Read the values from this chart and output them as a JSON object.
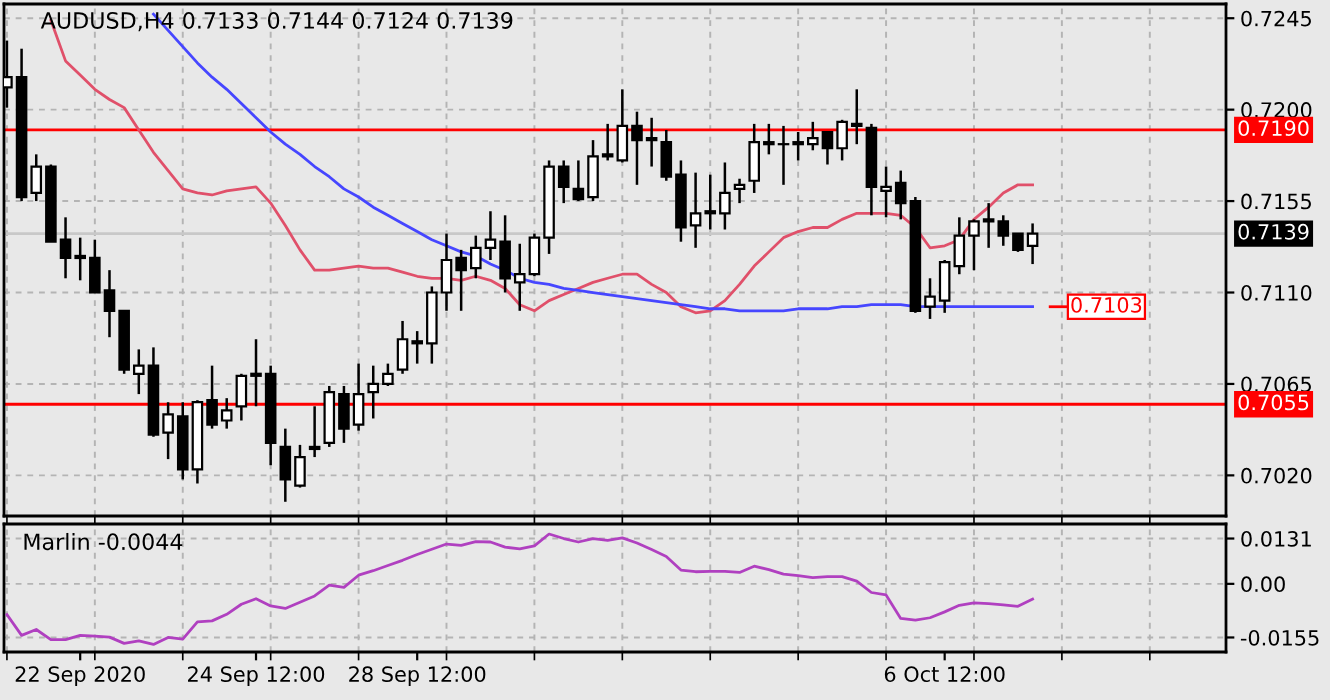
{
  "chart_data": [
    {
      "type": "candlestick",
      "title": "AUDUSD,H4 0.7133 0.7144 0.7124 0.7139",
      "color": "#000000",
      "categories": [
        null,
        null,
        null,
        null,
        null,
        null,
        null,
        null,
        null,
        null,
        null,
        null,
        null,
        null,
        null,
        null,
        null,
        null,
        null,
        null,
        null,
        null,
        null,
        null,
        null,
        null,
        null,
        null,
        null,
        null,
        null,
        null,
        null,
        null,
        null,
        null,
        null,
        null,
        null,
        null,
        null,
        null,
        null,
        null,
        null,
        null,
        null,
        null,
        null,
        null,
        null,
        null,
        null,
        null,
        null,
        null,
        null,
        null,
        null,
        null,
        null,
        null,
        null,
        null,
        null,
        null,
        null,
        null,
        null,
        null,
        null
      ],
      "ohlc": [
        [
          0.7211,
          0.7234,
          0.7201,
          0.7216
        ],
        [
          0.7216,
          0.723,
          0.7155,
          0.7157
        ],
        [
          0.7159,
          0.7178,
          0.7155,
          0.7172
        ],
        [
          0.7172,
          0.7173,
          0.7135,
          0.7135
        ],
        [
          0.7136,
          0.7147,
          0.7117,
          0.7127
        ],
        [
          0.7128,
          0.7137,
          0.7116,
          0.7127
        ],
        [
          0.7127,
          0.7136,
          0.711,
          0.711
        ],
        [
          0.7111,
          0.7121,
          0.7088,
          0.7101
        ],
        [
          0.7101,
          0.7101,
          0.707,
          0.7072
        ],
        [
          0.707,
          0.7082,
          0.706,
          0.7074
        ],
        [
          0.7074,
          0.7083,
          0.7039,
          0.704
        ],
        [
          0.7041,
          0.7056,
          0.7028,
          0.705
        ],
        [
          0.7049,
          0.7056,
          0.7018,
          0.7023
        ],
        [
          0.7023,
          0.7057,
          0.7016,
          0.7056
        ],
        [
          0.7057,
          0.7074,
          0.7043,
          0.7045
        ],
        [
          0.7047,
          0.7058,
          0.7043,
          0.7052
        ],
        [
          0.7054,
          0.707,
          0.7047,
          0.7069
        ],
        [
          0.707,
          0.7087,
          0.7054,
          0.7069
        ],
        [
          0.707,
          0.7074,
          0.7025,
          0.7036
        ],
        [
          0.7034,
          0.7043,
          0.7007,
          0.7018
        ],
        [
          0.7015,
          0.7035,
          0.7014,
          0.7029
        ],
        [
          0.7034,
          0.7054,
          0.7029,
          0.7033
        ],
        [
          0.7036,
          0.7064,
          0.7034,
          0.7061
        ],
        [
          0.706,
          0.7064,
          0.7036,
          0.7043
        ],
        [
          0.7045,
          0.7075,
          0.7042,
          0.706
        ],
        [
          0.7061,
          0.7074,
          0.7048,
          0.7065
        ],
        [
          0.7065,
          0.7075,
          0.7064,
          0.707
        ],
        [
          0.7072,
          0.7096,
          0.707,
          0.7087
        ],
        [
          0.7086,
          0.7091,
          0.7075,
          0.7085
        ],
        [
          0.7085,
          0.7113,
          0.7075,
          0.711
        ],
        [
          0.711,
          0.7139,
          0.7101,
          0.7126
        ],
        [
          0.7127,
          0.7131,
          0.7101,
          0.7121
        ],
        [
          0.7122,
          0.7138,
          0.7117,
          0.7132
        ],
        [
          0.7132,
          0.715,
          0.7126,
          0.7136
        ],
        [
          0.7135,
          0.7148,
          0.711,
          0.7117
        ],
        [
          0.7115,
          0.7134,
          0.7101,
          0.7119
        ],
        [
          0.7119,
          0.7139,
          0.7118,
          0.7137
        ],
        [
          0.7137,
          0.7175,
          0.7129,
          0.7172
        ],
        [
          0.7172,
          0.7175,
          0.7154,
          0.7162
        ],
        [
          0.7161,
          0.7175,
          0.7155,
          0.7156
        ],
        [
          0.7157,
          0.7185,
          0.7155,
          0.7177
        ],
        [
          0.7177,
          0.7193,
          0.7175,
          0.7178
        ],
        [
          0.7175,
          0.721,
          0.7174,
          0.7192
        ],
        [
          0.7192,
          0.7199,
          0.7163,
          0.7185
        ],
        [
          0.7186,
          0.7196,
          0.7172,
          0.7185
        ],
        [
          0.7184,
          0.719,
          0.7165,
          0.7167
        ],
        [
          0.7168,
          0.7175,
          0.7135,
          0.7142
        ],
        [
          0.7143,
          0.7169,
          0.7132,
          0.7149
        ],
        [
          0.7149,
          0.7168,
          0.7141,
          0.715
        ],
        [
          0.7149,
          0.7174,
          0.7141,
          0.7159
        ],
        [
          0.7161,
          0.7166,
          0.7154,
          0.7163
        ],
        [
          0.7165,
          0.7193,
          0.7159,
          0.7184
        ],
        [
          0.7184,
          0.7193,
          0.7178,
          0.7183
        ],
        [
          0.7183,
          0.7192,
          0.7163,
          0.7183
        ],
        [
          0.7183,
          0.7189,
          0.7175,
          0.7184
        ],
        [
          0.7183,
          0.7194,
          0.718,
          0.7186
        ],
        [
          0.7189,
          0.7189,
          0.7173,
          0.7181
        ],
        [
          0.7181,
          0.7195,
          0.7175,
          0.7194
        ],
        [
          0.7193,
          0.721,
          0.7183,
          0.7192
        ],
        [
          0.7191,
          0.7193,
          0.7148,
          0.7162
        ],
        [
          0.716,
          0.7172,
          0.7147,
          0.7162
        ],
        [
          0.7164,
          0.717,
          0.7146,
          0.7154
        ],
        [
          0.7155,
          0.7157,
          0.71,
          0.7101
        ],
        [
          0.7103,
          0.7117,
          0.7097,
          0.7108
        ],
        [
          0.7106,
          0.7126,
          0.71,
          0.7125
        ],
        [
          0.7123,
          0.7147,
          0.7119,
          0.7138
        ],
        [
          0.7138,
          0.7146,
          0.7121,
          0.7145
        ],
        [
          0.7146,
          0.7154,
          0.7132,
          0.7145
        ],
        [
          0.7145,
          0.7148,
          0.7133,
          0.7138
        ],
        [
          0.7139,
          0.7139,
          0.713,
          0.7131
        ],
        [
          0.7133,
          0.7144,
          0.7124,
          0.7139
        ]
      ],
      "series": [
        {
          "type": "line",
          "color": "#e0506a",
          "values": [
            null,
            null,
            null,
            0.7244,
            0.7224,
            0.7217,
            0.721,
            0.7205,
            0.7201,
            0.719,
            0.7179,
            0.717,
            0.7161,
            0.7159,
            0.7158,
            0.716,
            0.7161,
            0.7162,
            0.7154,
            0.7143,
            0.7131,
            0.7121,
            0.7121,
            0.7122,
            0.7123,
            0.7122,
            0.7122,
            0.712,
            0.7118,
            0.7117,
            0.7117,
            0.7116,
            0.7118,
            0.7116,
            0.7112,
            0.7104,
            0.7101,
            0.7106,
            0.7109,
            0.7112,
            0.7115,
            0.7117,
            0.7119,
            0.7119,
            0.7114,
            0.711,
            0.7103,
            0.71,
            0.7101,
            0.7106,
            0.7114,
            0.7123,
            0.713,
            0.7137,
            0.714,
            0.7142,
            0.7142,
            0.7146,
            0.7149,
            0.7149,
            0.7149,
            0.7148,
            0.7142,
            0.7132,
            0.7133,
            0.7136,
            0.7146,
            0.7152,
            0.7159,
            0.7163,
            0.7163
          ]
        },
        {
          "type": "line",
          "color": "#4646ff",
          "values": [
            null,
            null,
            null,
            null,
            null,
            null,
            null,
            null,
            null,
            null,
            0.7247,
            0.7239,
            0.7231,
            0.7223,
            0.7216,
            0.721,
            0.7203,
            0.7196,
            0.7189,
            0.7183,
            0.7178,
            0.7172,
            0.7167,
            0.7161,
            0.7157,
            0.7152,
            0.7148,
            0.7144,
            0.714,
            0.7136,
            0.7133,
            0.713,
            0.7128,
            0.7124,
            0.7121,
            0.7117,
            0.7115,
            0.7114,
            0.7112,
            0.7111,
            0.711,
            0.7109,
            0.7108,
            0.7107,
            0.7106,
            0.7105,
            0.7104,
            0.7103,
            0.7102,
            0.7102,
            0.7101,
            0.7101,
            0.7101,
            0.7101,
            0.7102,
            0.7102,
            0.7102,
            0.7103,
            0.7103,
            0.7104,
            0.7104,
            0.7104,
            0.7103,
            0.7103,
            0.7103,
            0.7103,
            0.7103,
            0.7103,
            0.7103,
            0.7103,
            0.7103
          ]
        }
      ],
      "ylim": [
        0.7,
        0.7252
      ],
      "yticks": [
        {
          "value": 0.702,
          "label": "0.7020"
        },
        {
          "value": 0.7065,
          "label": "0.7065"
        },
        {
          "value": 0.711,
          "label": "0.7110"
        },
        {
          "value": 0.7155,
          "label": "0.7155"
        },
        {
          "value": 0.72,
          "label": "0.7200"
        },
        {
          "value": 0.7245,
          "label": "0.7245"
        }
      ],
      "tick_labels": "y",
      "grid": true,
      "ref_lines": [
        {
          "axis": "y",
          "value": 0.719,
          "label": "0.7190",
          "color": "#ff0000"
        },
        {
          "axis": "y",
          "value": 0.7055,
          "label": "0.7055",
          "color": "#ff0000"
        },
        {
          "axis": "y",
          "value": 0.7139,
          "label": "0.7139",
          "color": "#c8c8c8"
        }
      ],
      "annotations": [
        "0.7103"
      ]
    },
    {
      "type": "line",
      "title": "Marlin -0.0044",
      "categories": [
        null,
        null,
        null,
        null,
        null,
        "22 Sep 2020",
        null,
        null,
        null,
        null,
        null,
        null,
        null,
        null,
        null,
        null,
        null,
        "24 Sep 12:00",
        null,
        null,
        null,
        null,
        null,
        null,
        null,
        null,
        null,
        null,
        "28 Sep 12:00",
        null,
        null,
        null,
        null,
        null,
        null,
        null,
        null,
        null,
        null,
        null,
        null,
        null,
        null,
        null,
        null,
        null,
        null,
        null,
        null,
        null,
        null,
        null,
        null,
        null,
        null,
        null,
        null,
        null,
        null,
        null,
        null,
        null,
        null,
        null,
        "6 Oct 12:00",
        null,
        null,
        null,
        null,
        null,
        null
      ],
      "series": [
        {
          "color": "#b040c0",
          "values": [
            -0.0089,
            -0.0149,
            -0.0132,
            -0.0161,
            -0.0161,
            -0.0149,
            -0.0151,
            -0.0154,
            -0.0172,
            -0.0165,
            -0.0175,
            -0.0155,
            -0.016,
            -0.011,
            -0.0107,
            -0.0088,
            -0.0059,
            -0.0043,
            -0.0064,
            -0.0071,
            -0.0053,
            -0.0035,
            -0.0004,
            -0.001,
            0.0025,
            0.0038,
            0.0053,
            0.0068,
            0.0085,
            0.01,
            0.0115,
            0.0111,
            0.0122,
            0.0121,
            0.0106,
            0.0101,
            0.011,
            0.0144,
            0.0131,
            0.0121,
            0.0131,
            0.0126,
            0.0133,
            0.0118,
            0.0099,
            0.0079,
            0.004,
            0.0035,
            0.0036,
            0.0036,
            0.0033,
            0.0051,
            0.0041,
            0.0028,
            0.0024,
            0.0018,
            0.0021,
            0.0021,
            0.0008,
            -0.0025,
            -0.0032,
            -0.01,
            -0.0105,
            -0.0098,
            -0.0081,
            -0.0062,
            -0.0055,
            -0.0057,
            -0.0061,
            -0.0065,
            -0.0044
          ]
        }
      ],
      "ylim": [
        -0.0197,
        0.0173
      ],
      "yticks": [
        {
          "value": 0.0131,
          "label": "0.0131"
        },
        {
          "value": 0,
          "label": "0.00"
        },
        {
          "value": -0.0155,
          "label": "-0.0155"
        }
      ],
      "grid": true
    }
  ]
}
